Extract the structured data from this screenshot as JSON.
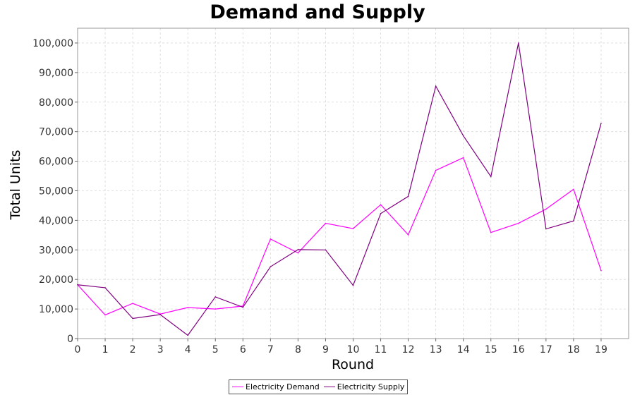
{
  "chart_data": {
    "type": "line",
    "title": "Demand and Supply",
    "xlabel": "Round",
    "ylabel": "Total Units",
    "x": [
      0,
      1,
      2,
      3,
      4,
      5,
      6,
      7,
      8,
      9,
      10,
      11,
      12,
      13,
      14,
      15,
      16,
      17,
      18,
      19
    ],
    "xlim": [
      0,
      20
    ],
    "ylim": [
      0,
      105000
    ],
    "yticks": [
      0,
      10000,
      20000,
      30000,
      40000,
      50000,
      60000,
      70000,
      80000,
      90000,
      100000
    ],
    "ytick_labels": [
      "0",
      "10,000",
      "20,000",
      "30,000",
      "40,000",
      "50,000",
      "60,000",
      "70,000",
      "80,000",
      "90,000",
      "100,000"
    ],
    "grid": true,
    "legend_position": "bottom",
    "series": [
      {
        "name": "Electricity Demand",
        "color": "#ff00ff",
        "values": [
          18200,
          8000,
          11900,
          8300,
          10500,
          10000,
          11000,
          33700,
          29000,
          39000,
          37200,
          45300,
          35100,
          56900,
          61200,
          35900,
          39000,
          43800,
          50500,
          23000
        ]
      },
      {
        "name": "Electricity Supply",
        "color": "#800080",
        "values": [
          18200,
          17200,
          6800,
          8100,
          1100,
          14100,
          10600,
          24300,
          30100,
          30000,
          18000,
          42300,
          48100,
          85400,
          68600,
          54800,
          100000,
          37100,
          39800,
          72800
        ]
      }
    ]
  }
}
